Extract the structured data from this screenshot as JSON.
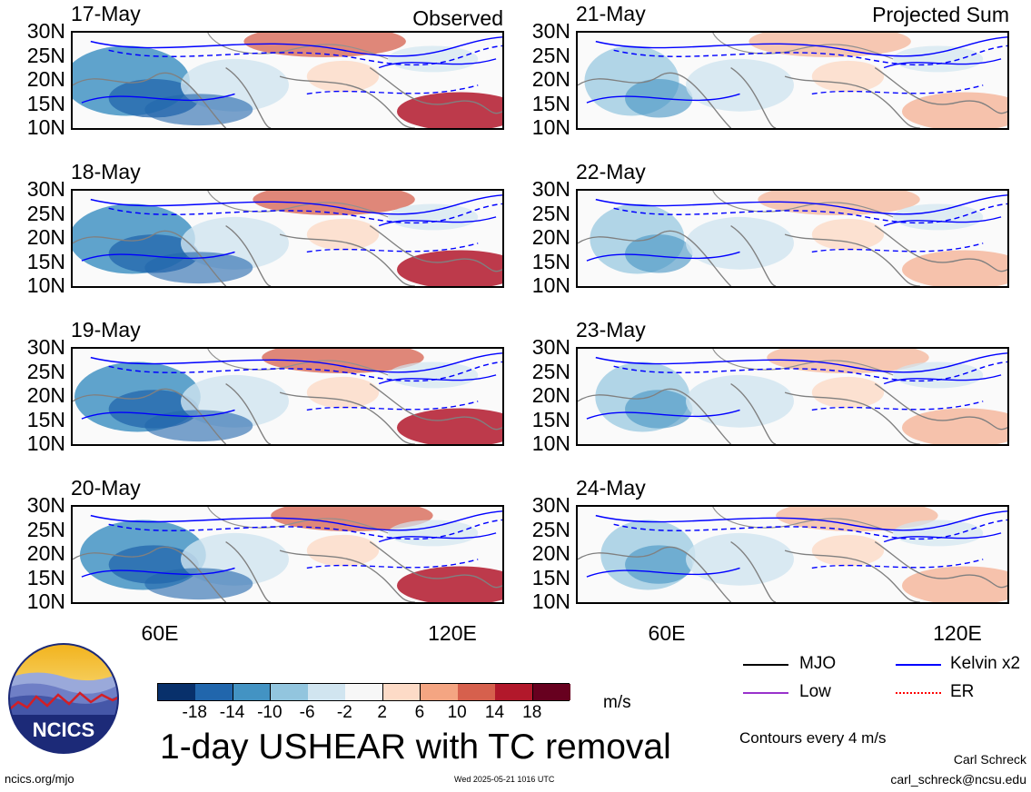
{
  "panels": {
    "left_header": "Observed",
    "right_header": "Projected Sum",
    "observed_dates": [
      "17-May",
      "18-May",
      "19-May",
      "20-May"
    ],
    "projected_dates": [
      "21-May",
      "22-May",
      "23-May",
      "24-May"
    ]
  },
  "axes": {
    "lat_labels": [
      "30N",
      "25N",
      "20N",
      "15N",
      "10N"
    ],
    "lon_labels": [
      "60E",
      "120E"
    ]
  },
  "colorbar": {
    "ticks": [
      "-18",
      "-14",
      "-10",
      "-6",
      "-2",
      "2",
      "6",
      "10",
      "14",
      "18"
    ],
    "unit": "m/s",
    "colors": [
      "#08306b",
      "#2166ac",
      "#4393c3",
      "#92c5de",
      "#d1e5f0",
      "#f7f7f7",
      "#fddbc7",
      "#f4a582",
      "#d6604d",
      "#b2182b",
      "#67001f"
    ]
  },
  "legend": {
    "items": [
      {
        "label": "MJO",
        "color": "#000000"
      },
      {
        "label": "Kelvin x2",
        "color": "#0000ff"
      },
      {
        "label": "Low",
        "color": "#9932cc"
      },
      {
        "label": "ER",
        "color": "#ff0000"
      }
    ],
    "contours_note": "Contours every 4 m/s"
  },
  "title": "1-day USHEAR with TC removal",
  "footer": {
    "logo_text": "NCICS",
    "url": "ncics.org/mjo",
    "timestamp": "Wed 2025-05-21 1016 UTC",
    "author": "Carl Schreck",
    "email": "carl_schreck@ncsu.edu"
  }
}
